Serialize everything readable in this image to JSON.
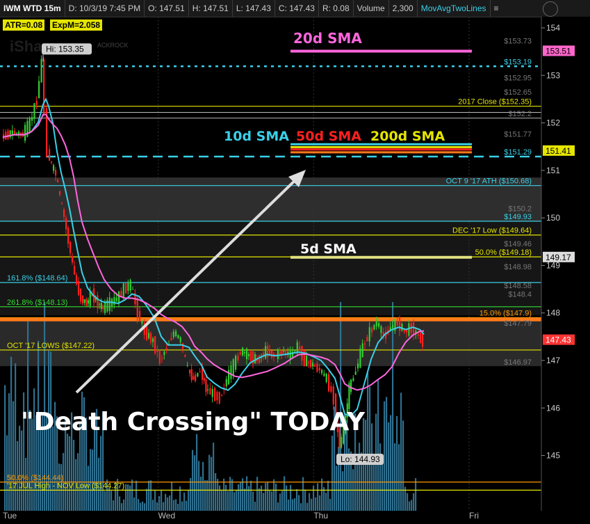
{
  "header": {
    "symbol": "IWM WTD 15m",
    "date": "D: 10/3/19 7:45 PM",
    "open": "O: 147.51",
    "high": "H: 147.51",
    "low": "L: 147.43",
    "close": "C: 147.43",
    "range": "R: 0.08",
    "volume_label": "Volume",
    "volume": "2,300",
    "study": "MovAvgTwoLines",
    "menu_glyph": "≡"
  },
  "badges": {
    "atr": "ATR=0.08",
    "expm": "ExpM=2.058"
  },
  "watermark": "iShares",
  "watermark2": "ACKROCK",
  "axis": {
    "y_ticks": [
      {
        "v": 154,
        "label": "154"
      },
      {
        "v": 153,
        "label": "153"
      },
      {
        "v": 152,
        "label": "152"
      },
      {
        "v": 151,
        "label": "151"
      },
      {
        "v": 150,
        "label": "150"
      },
      {
        "v": 149,
        "label": "149"
      },
      {
        "v": 148,
        "label": "148"
      },
      {
        "v": 147,
        "label": "147"
      },
      {
        "v": 146,
        "label": "146"
      },
      {
        "v": 145,
        "label": "145"
      }
    ],
    "x_ticks": [
      {
        "label": "Tue",
        "x": 0.0
      },
      {
        "label": "Wed",
        "x": 0.25
      },
      {
        "label": "Thu",
        "x": 0.5
      },
      {
        "label": "Fri",
        "x": 0.75
      }
    ]
  },
  "price_tags": [
    {
      "v": 153.51,
      "label": "153.51",
      "bg": "#ff66cc",
      "fg": "#000"
    },
    {
      "v": 151.41,
      "label": "151.41",
      "bg": "#e5e500",
      "fg": "#000"
    },
    {
      "v": 149.17,
      "label": "149.17",
      "bg": "#dddddd",
      "fg": "#000"
    },
    {
      "v": 147.43,
      "label": "147.43",
      "bg": "#ff3333",
      "fg": "#fff"
    }
  ],
  "gray_labels": [
    {
      "v": 153.73,
      "label": "$153.73"
    },
    {
      "v": 152.95,
      "label": "$152.95"
    },
    {
      "v": 152.65,
      "label": "$152.65"
    },
    {
      "v": 152.2,
      "label": "$152.2"
    },
    {
      "v": 151.77,
      "label": "$151.77"
    },
    {
      "v": 150.2,
      "label": "$150.2"
    },
    {
      "v": 149.46,
      "label": "$149.46"
    },
    {
      "v": 148.98,
      "label": "$148.98"
    },
    {
      "v": 148.58,
      "label": "$148.58"
    },
    {
      "v": 148.4,
      "label": "$148.4"
    },
    {
      "v": 147.79,
      "label": "$147.79"
    },
    {
      "v": 146.97,
      "label": "$146.97"
    }
  ],
  "levels": [
    {
      "v": 153.19,
      "label": "$153.19",
      "color": "#3ad0e8",
      "dash": true,
      "side": "right"
    },
    {
      "v": 152.35,
      "label": "2017 Close ($152.35)",
      "color": "#e5e500",
      "dash": false,
      "side": "right"
    },
    {
      "v": 151.29,
      "label": "$151.29",
      "color": "#3ad0e8",
      "dash": true,
      "side": "right"
    },
    {
      "v": 150.68,
      "label": "OCT 9 '17 ATH   ($150.68)",
      "color": "#3ad0e8",
      "dash": false,
      "side": "right"
    },
    {
      "v": 149.93,
      "label": "$149.93",
      "color": "#3ad0e8",
      "dash": false,
      "side": "right"
    },
    {
      "v": 149.64,
      "label": "DEC '17 Low ($149.64)",
      "color": "#e5e500",
      "dash": false,
      "side": "right"
    },
    {
      "v": 149.18,
      "label": "50.0%  ($149.18)",
      "color": "#e5e500",
      "dash": false,
      "side": "right"
    },
    {
      "v": 148.64,
      "label": "161.8%  ($148.64)",
      "color": "#3ad0e8",
      "dash": false,
      "side": "left"
    },
    {
      "v": 148.13,
      "label": "261.8%  ($148.13)",
      "color": "#33dd33",
      "dash": false,
      "side": "left"
    },
    {
      "v": 147.9,
      "label": "15.0%  ($147.9)",
      "color": "#ff9900",
      "dash": false,
      "side": "right"
    },
    {
      "v": 147.22,
      "label": "OCT '17 LOWS   ($147.22)",
      "color": "#e5e500",
      "dash": false,
      "side": "left"
    },
    {
      "v": 144.44,
      "label": "50.0%  ($144.44)",
      "color": "#ff9900",
      "dash": false,
      "side": "left"
    },
    {
      "v": 144.27,
      "label": "'17 JUL High - NOV Low ($144.27)",
      "color": "#e5e500",
      "dash": false,
      "side": "left"
    }
  ],
  "hi_label": "Hi: 153.35",
  "lo_label": "Lo: 144.93",
  "annotations": {
    "sma20": "20d SMA",
    "sma10": "10d SMA",
    "sma50": "50d SMA",
    "sma200": "200d SMA",
    "sma5": "5d SMA",
    "death": "\"Death Crossing\" TODAY"
  },
  "colors": {
    "cyan": "#3ad0e8",
    "magenta": "#ff66dd",
    "yellow": "#e5e500",
    "orange": "#ff7a1a",
    "red": "#ff2020",
    "green": "#33cc33",
    "volume": "#2f6f8f"
  }
}
